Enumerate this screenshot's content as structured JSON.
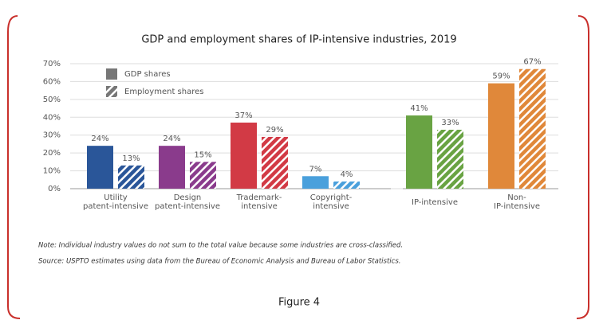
{
  "chart_data": {
    "type": "bar",
    "title": "GDP and employment shares of IP-intensive industries, 2019",
    "categories": [
      "Utility\npatent-intensive",
      "Design\npatent-intensive",
      "Trademark-\nintensive",
      "Copyright-\nintensive",
      "IP-intensive",
      "Non-\nIP-intensive"
    ],
    "colors": [
      "#2a5699",
      "#8a3b8c",
      "#d23a45",
      "#4aa0dc",
      "#69a343",
      "#e0883a"
    ],
    "series": [
      {
        "name": "GDP shares",
        "color": "#777777",
        "hatch": false,
        "values": [
          24,
          24,
          37,
          7,
          41,
          59
        ],
        "value_labels": [
          "24%",
          "24%",
          "37%",
          "7%",
          "41%",
          "59%"
        ]
      },
      {
        "name": "Employment shares",
        "color": "#777777",
        "hatch": true,
        "values": [
          13,
          15,
          29,
          4,
          33,
          67
        ],
        "value_labels": [
          "13%",
          "15%",
          "29%",
          "4%",
          "33%",
          "67%"
        ]
      }
    ],
    "ylim": [
      0,
      70
    ],
    "yticks": [
      {
        "value": 0,
        "label": "0%"
      },
      {
        "value": 10,
        "label": "10%"
      },
      {
        "value": 20,
        "label": "20%"
      },
      {
        "value": 30,
        "label": "30%"
      },
      {
        "value": 40,
        "label": "40%"
      },
      {
        "value": 50,
        "label": "50%"
      },
      {
        "value": 60,
        "label": "60%"
      },
      {
        "value": 70,
        "label": "70%"
      }
    ],
    "grid": true,
    "note": "Note: Individual industry values do not sum to the total value because some industries are cross-classified.",
    "source": "Source: USPTO estimates using data from the Bureau of Economic Analysis and Bureau of Labor Statistics."
  },
  "figure_caption": "Figure 4"
}
